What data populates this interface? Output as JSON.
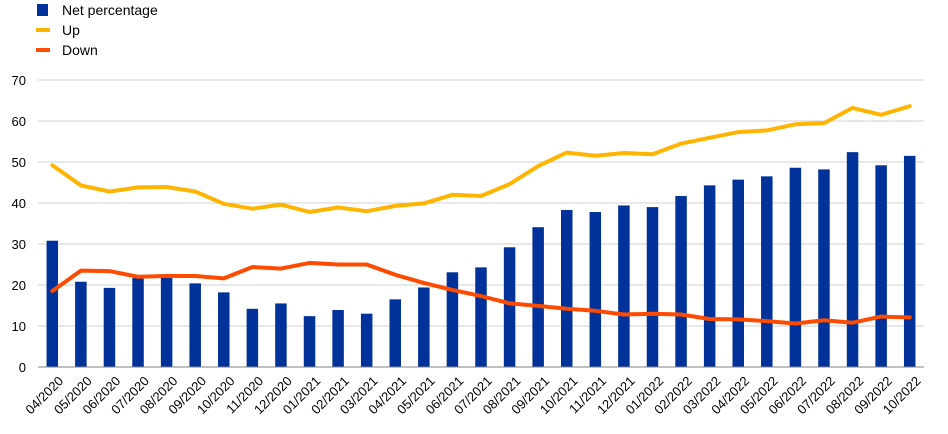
{
  "chart_data": {
    "type": "bar",
    "title": "",
    "xlabel": "",
    "ylabel": "",
    "ylim": [
      0,
      70
    ],
    "yticks": [
      0,
      10,
      20,
      30,
      40,
      50,
      60,
      70
    ],
    "grid": true,
    "legend_position": "top-left",
    "categories": [
      "04/2020",
      "05/2020",
      "06/2020",
      "07/2020",
      "08/2020",
      "09/2020",
      "10/2020",
      "11/2020",
      "12/2020",
      "01/2021",
      "02/2021",
      "03/2021",
      "04/2021",
      "05/2021",
      "06/2021",
      "07/2021",
      "08/2021",
      "09/2021",
      "10/2021",
      "11/2021",
      "12/2021",
      "01/2022",
      "02/2022",
      "03/2022",
      "04/2022",
      "05/2022",
      "06/2022",
      "07/2022",
      "08/2022",
      "09/2022",
      "10/2022"
    ],
    "series": [
      {
        "name": "Net percentage",
        "kind": "bar",
        "color": "#003299",
        "values": [
          30.8,
          20.8,
          19.3,
          21.7,
          21.8,
          20.4,
          18.2,
          14.2,
          15.5,
          12.4,
          13.9,
          13.0,
          16.5,
          19.4,
          23.1,
          24.3,
          29.2,
          34.1,
          38.3,
          37.8,
          39.4,
          39.0,
          41.7,
          44.3,
          45.7,
          46.5,
          48.6,
          48.2,
          52.4,
          49.2,
          51.5
        ]
      },
      {
        "name": "Up",
        "kind": "line",
        "color": "#FFB400",
        "values": [
          49.2,
          44.3,
          42.8,
          43.8,
          43.9,
          42.8,
          39.8,
          38.6,
          39.6,
          37.8,
          38.9,
          38.0,
          39.3,
          39.9,
          42.0,
          41.7,
          44.6,
          49.0,
          52.3,
          51.5,
          52.2,
          51.9,
          54.5,
          55.9,
          57.3,
          57.7,
          59.2,
          59.5,
          63.2,
          61.5,
          63.6
        ]
      },
      {
        "name": "Down",
        "kind": "line",
        "color": "#FF4B00",
        "values": [
          18.5,
          23.5,
          23.4,
          22.0,
          22.2,
          22.2,
          21.6,
          24.4,
          24.0,
          25.4,
          25.0,
          25.0,
          22.5,
          20.5,
          18.8,
          17.3,
          15.5,
          14.9,
          14.2,
          13.7,
          12.8,
          13.0,
          12.8,
          11.7,
          11.6,
          11.2,
          10.6,
          11.4,
          10.8,
          12.3,
          12.1
        ]
      }
    ]
  }
}
